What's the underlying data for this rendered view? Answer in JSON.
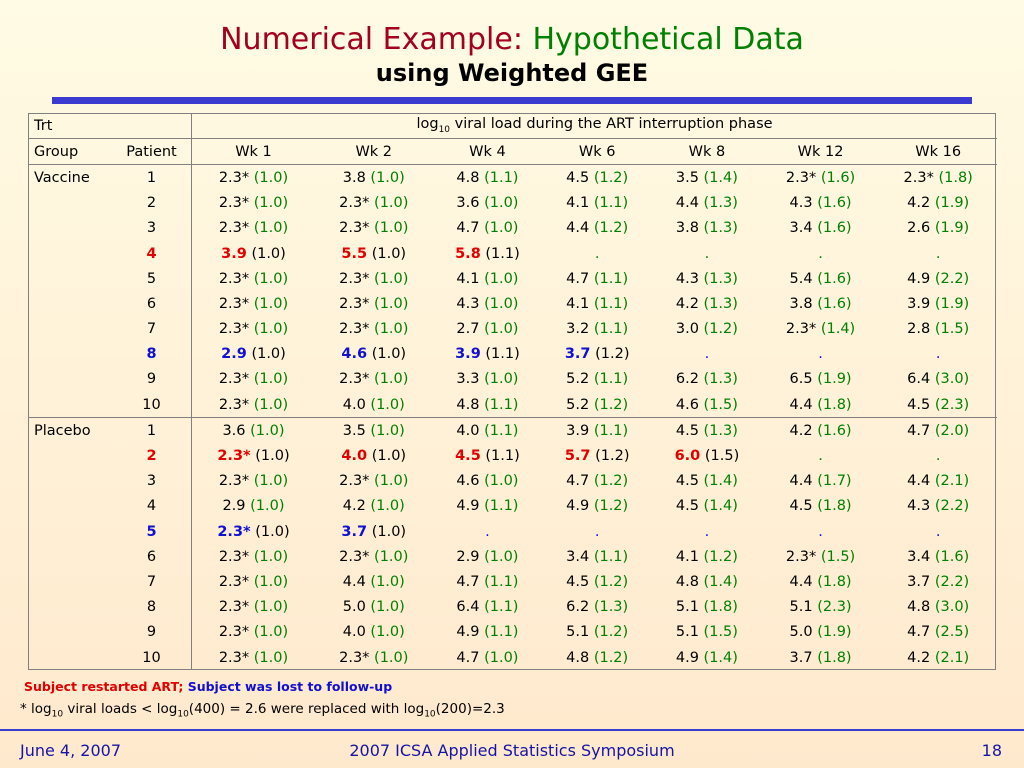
{
  "title": {
    "part1": "Numerical Example:",
    "part2": "Hypothetical Data",
    "line2": "using Weighted GEE"
  },
  "colors": {
    "title_red": "#a3001c",
    "title_green": "#008000",
    "accent_blue": "#3b3bd0",
    "restart_red": "#e00000",
    "lost_blue": "#1010d0"
  },
  "table": {
    "hdr_trt": "Trt",
    "hdr_group": "Group",
    "hdr_patient": "Patient",
    "hdr_span_pre": "log",
    "hdr_span_sub": "10",
    "hdr_span_post": " viral load during the ART interruption phase",
    "weeks": [
      "Wk 1",
      "Wk 2",
      "Wk 4",
      "Wk 6",
      "Wk 8",
      "Wk 12",
      "Wk 16"
    ],
    "groups": [
      {
        "name": "Vaccine",
        "rows": [
          {
            "patient": "1",
            "status": "normal",
            "cells": [
              [
                "2.3*",
                "(1.0)"
              ],
              [
                "3.8",
                "(1.0)"
              ],
              [
                "4.8",
                "(1.1)"
              ],
              [
                "4.5",
                "(1.2)"
              ],
              [
                "3.5",
                "(1.4)"
              ],
              [
                "2.3*",
                "(1.6)"
              ],
              [
                "2.3*",
                "(1.8)"
              ]
            ]
          },
          {
            "patient": "2",
            "status": "normal",
            "cells": [
              [
                "2.3*",
                "(1.0)"
              ],
              [
                "2.3*",
                "(1.0)"
              ],
              [
                "3.6",
                "(1.0)"
              ],
              [
                "4.1",
                "(1.1)"
              ],
              [
                "4.4",
                "(1.3)"
              ],
              [
                "4.3",
                "(1.6)"
              ],
              [
                "4.2",
                "(1.9)"
              ]
            ]
          },
          {
            "patient": "3",
            "status": "normal",
            "cells": [
              [
                "2.3*",
                "(1.0)"
              ],
              [
                "2.3*",
                "(1.0)"
              ],
              [
                "4.7",
                "(1.0)"
              ],
              [
                "4.4",
                "(1.2)"
              ],
              [
                "3.8",
                "(1.3)"
              ],
              [
                "3.4",
                "(1.6)"
              ],
              [
                "2.6",
                "(1.9)"
              ]
            ]
          },
          {
            "patient": "4",
            "status": "restart",
            "cells": [
              [
                "3.9",
                "(1.0)"
              ],
              [
                "5.5",
                "(1.0)"
              ],
              [
                "5.8",
                "(1.1)"
              ],
              [
                ".",
                ""
              ],
              [
                ".",
                ""
              ],
              [
                ".",
                ""
              ],
              [
                ".",
                ""
              ]
            ]
          },
          {
            "patient": "5",
            "status": "normal",
            "cells": [
              [
                "2.3*",
                "(1.0)"
              ],
              [
                "2.3*",
                "(1.0)"
              ],
              [
                "4.1",
                "(1.0)"
              ],
              [
                "4.7",
                "(1.1)"
              ],
              [
                "4.3",
                "(1.3)"
              ],
              [
                "5.4",
                "(1.6)"
              ],
              [
                "4.9",
                "(2.2)"
              ]
            ]
          },
          {
            "patient": "6",
            "status": "normal",
            "cells": [
              [
                "2.3*",
                "(1.0)"
              ],
              [
                "2.3*",
                "(1.0)"
              ],
              [
                "4.3",
                "(1.0)"
              ],
              [
                "4.1",
                "(1.1)"
              ],
              [
                "4.2",
                "(1.3)"
              ],
              [
                "3.8",
                "(1.6)"
              ],
              [
                "3.9",
                "(1.9)"
              ]
            ]
          },
          {
            "patient": "7",
            "status": "normal",
            "cells": [
              [
                "2.3*",
                "(1.0)"
              ],
              [
                "2.3*",
                "(1.0)"
              ],
              [
                "2.7",
                "(1.0)"
              ],
              [
                "3.2",
                "(1.1)"
              ],
              [
                "3.0",
                "(1.2)"
              ],
              [
                "2.3*",
                "(1.4)"
              ],
              [
                "2.8",
                "(1.5)"
              ]
            ]
          },
          {
            "patient": "8",
            "status": "lost",
            "cells": [
              [
                "2.9",
                "(1.0)"
              ],
              [
                "4.6",
                "(1.0)"
              ],
              [
                "3.9",
                "(1.1)"
              ],
              [
                "3.7",
                "(1.2)"
              ],
              [
                ".",
                ""
              ],
              [
                ".",
                ""
              ],
              [
                ".",
                ""
              ]
            ]
          },
          {
            "patient": "9",
            "status": "normal",
            "cells": [
              [
                "2.3*",
                "(1.0)"
              ],
              [
                "2.3*",
                "(1.0)"
              ],
              [
                "3.3",
                "(1.0)"
              ],
              [
                "5.2",
                "(1.1)"
              ],
              [
                "6.2",
                "(1.3)"
              ],
              [
                "6.5",
                "(1.9)"
              ],
              [
                "6.4",
                "(3.0)"
              ]
            ]
          },
          {
            "patient": "10",
            "status": "normal",
            "cells": [
              [
                "2.3*",
                "(1.0)"
              ],
              [
                "4.0",
                "(1.0)"
              ],
              [
                "4.8",
                "(1.1)"
              ],
              [
                "5.2",
                "(1.2)"
              ],
              [
                "4.6",
                "(1.5)"
              ],
              [
                "4.4",
                "(1.8)"
              ],
              [
                "4.5",
                "(2.3)"
              ]
            ]
          }
        ]
      },
      {
        "name": "Placebo",
        "rows": [
          {
            "patient": "1",
            "status": "normal",
            "cells": [
              [
                "3.6",
                "(1.0)"
              ],
              [
                "3.5",
                "(1.0)"
              ],
              [
                "4.0",
                "(1.1)"
              ],
              [
                "3.9",
                "(1.1)"
              ],
              [
                "4.5",
                "(1.3)"
              ],
              [
                "4.2",
                "(1.6)"
              ],
              [
                "4.7",
                "(2.0)"
              ]
            ]
          },
          {
            "patient": "2",
            "status": "restart",
            "cells": [
              [
                "2.3*",
                "(1.0)"
              ],
              [
                "4.0",
                "(1.0)"
              ],
              [
                "4.5",
                "(1.1)"
              ],
              [
                "5.7",
                "(1.2)"
              ],
              [
                "6.0",
                "(1.5)"
              ],
              [
                ".",
                ""
              ],
              [
                ".",
                ""
              ]
            ]
          },
          {
            "patient": "3",
            "status": "normal",
            "cells": [
              [
                "2.3*",
                "(1.0)"
              ],
              [
                "2.3*",
                "(1.0)"
              ],
              [
                "4.6",
                "(1.0)"
              ],
              [
                "4.7",
                "(1.2)"
              ],
              [
                "4.5",
                "(1.4)"
              ],
              [
                "4.4",
                "(1.7)"
              ],
              [
                "4.4",
                "(2.1)"
              ]
            ]
          },
          {
            "patient": "4",
            "status": "normal",
            "cells": [
              [
                "2.9",
                "(1.0)"
              ],
              [
                "4.2",
                "(1.0)"
              ],
              [
                "4.9",
                "(1.1)"
              ],
              [
                "4.9",
                "(1.2)"
              ],
              [
                "4.5",
                "(1.4)"
              ],
              [
                "4.5",
                "(1.8)"
              ],
              [
                "4.3",
                "(2.2)"
              ]
            ]
          },
          {
            "patient": "5",
            "status": "lost",
            "cells": [
              [
                "2.3*",
                "(1.0)"
              ],
              [
                "3.7",
                "(1.0)"
              ],
              [
                ".",
                ""
              ],
              [
                ".",
                ""
              ],
              [
                ".",
                ""
              ],
              [
                ".",
                ""
              ],
              [
                ".",
                ""
              ]
            ]
          },
          {
            "patient": "6",
            "status": "normal",
            "cells": [
              [
                "2.3*",
                "(1.0)"
              ],
              [
                "2.3*",
                "(1.0)"
              ],
              [
                "2.9",
                "(1.0)"
              ],
              [
                "3.4",
                "(1.1)"
              ],
              [
                "4.1",
                "(1.2)"
              ],
              [
                "2.3*",
                "(1.5)"
              ],
              [
                "3.4",
                "(1.6)"
              ]
            ]
          },
          {
            "patient": "7",
            "status": "normal",
            "cells": [
              [
                "2.3*",
                "(1.0)"
              ],
              [
                "4.4",
                "(1.0)"
              ],
              [
                "4.7",
                "(1.1)"
              ],
              [
                "4.5",
                "(1.2)"
              ],
              [
                "4.8",
                "(1.4)"
              ],
              [
                "4.4",
                "(1.8)"
              ],
              [
                "3.7",
                "(2.2)"
              ]
            ]
          },
          {
            "patient": "8",
            "status": "normal",
            "cells": [
              [
                "2.3*",
                "(1.0)"
              ],
              [
                "5.0",
                "(1.0)"
              ],
              [
                "6.4",
                "(1.1)"
              ],
              [
                "6.2",
                "(1.3)"
              ],
              [
                "5.1",
                "(1.8)"
              ],
              [
                "5.1",
                "(2.3)"
              ],
              [
                "4.8",
                "(3.0)"
              ]
            ]
          },
          {
            "patient": "9",
            "status": "normal",
            "cells": [
              [
                "2.3*",
                "(1.0)"
              ],
              [
                "4.0",
                "(1.0)"
              ],
              [
                "4.9",
                "(1.1)"
              ],
              [
                "5.1",
                "(1.2)"
              ],
              [
                "5.1",
                "(1.5)"
              ],
              [
                "5.0",
                "(1.9)"
              ],
              [
                "4.7",
                "(2.5)"
              ]
            ]
          },
          {
            "patient": "10",
            "status": "normal",
            "cells": [
              [
                "2.3*",
                "(1.0)"
              ],
              [
                "2.3*",
                "(1.0)"
              ],
              [
                "4.7",
                "(1.0)"
              ],
              [
                "4.8",
                "(1.2)"
              ],
              [
                "4.9",
                "(1.4)"
              ],
              [
                "3.7",
                "(1.8)"
              ],
              [
                "4.2",
                "(2.1)"
              ]
            ]
          }
        ]
      }
    ]
  },
  "legend": {
    "restarted": "Subject restarted ART;",
    "lost": "Subject was lost to follow-up"
  },
  "footnote": {
    "p1": "* log",
    "s1": "10",
    "p2": " viral loads < log",
    "s2": "10",
    "p3": "(400) = 2.6 were replaced with log",
    "s3": "10",
    "p4": "(200)=2.3"
  },
  "footer": {
    "date": "June 4, 2007",
    "conference": "2007 ICSA Applied Statistics Symposium",
    "page": "18"
  }
}
